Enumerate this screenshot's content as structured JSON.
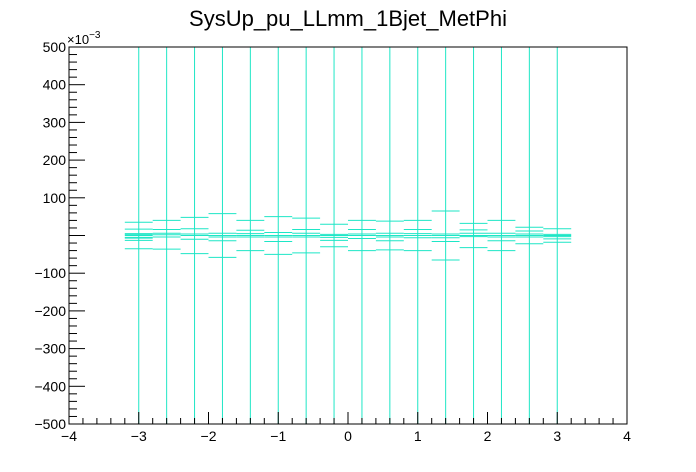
{
  "chart_data": {
    "type": "scatter",
    "title": "SysUp_pu_LLmm_1Bjet_MetPhi",
    "xlabel": "",
    "ylabel": "",
    "xlim": [
      -4,
      4
    ],
    "ylim": [
      -500,
      500
    ],
    "y_scale_label": "×10",
    "y_scale_exponent": "−3",
    "x_tick_labels": [
      "−4",
      "−3",
      "−2",
      "−1",
      "0",
      "1",
      "2",
      "3",
      "4"
    ],
    "x_tick_values": [
      -4,
      -3,
      -2,
      -1,
      0,
      1,
      2,
      3,
      4
    ],
    "y_tick_labels": [
      "−500",
      "−400",
      "−300",
      "−200",
      "−100",
      "100",
      "200",
      "300",
      "400",
      "500"
    ],
    "y_tick_values": [
      -500,
      -400,
      -300,
      -200,
      -100,
      100,
      200,
      300,
      400,
      500
    ],
    "grid": false,
    "series": [
      {
        "color": "#1ee6c6",
        "vertical_line_x": [
          -3.0,
          -2.6,
          -2.2,
          -1.8,
          -1.4,
          -1.0,
          -0.6,
          -0.2,
          0.2,
          0.6,
          1.0,
          1.4,
          1.8,
          2.2,
          2.6,
          3.0
        ],
        "bin_half_width": 0.2,
        "points": [
          {
            "x": -3.0,
            "y": 0,
            "err": 35
          },
          {
            "x": -3.0,
            "y": 5,
            "err": 12
          },
          {
            "x": -3.0,
            "y": -5,
            "err": 8
          },
          {
            "x": -2.6,
            "y": 2,
            "err": 38
          },
          {
            "x": -2.6,
            "y": 6,
            "err": 10
          },
          {
            "x": -2.2,
            "y": 0,
            "err": 48
          },
          {
            "x": -2.2,
            "y": 4,
            "err": 14
          },
          {
            "x": -1.8,
            "y": 0,
            "err": 58
          },
          {
            "x": -1.8,
            "y": -4,
            "err": 10
          },
          {
            "x": -1.4,
            "y": 0,
            "err": 40
          },
          {
            "x": -1.4,
            "y": 5,
            "err": 9
          },
          {
            "x": -1.0,
            "y": 0,
            "err": 50
          },
          {
            "x": -1.0,
            "y": -4,
            "err": 12
          },
          {
            "x": -0.6,
            "y": 0,
            "err": 46
          },
          {
            "x": -0.6,
            "y": 6,
            "err": 10
          },
          {
            "x": -0.2,
            "y": 0,
            "err": 30
          },
          {
            "x": -0.2,
            "y": -5,
            "err": 8
          },
          {
            "x": 0.2,
            "y": 0,
            "err": 40
          },
          {
            "x": 0.2,
            "y": 4,
            "err": 12
          },
          {
            "x": 0.6,
            "y": 0,
            "err": 38
          },
          {
            "x": 0.6,
            "y": -4,
            "err": 10
          },
          {
            "x": 1.0,
            "y": 0,
            "err": 40
          },
          {
            "x": 1.0,
            "y": 5,
            "err": 11
          },
          {
            "x": 1.4,
            "y": 0,
            "err": 65
          },
          {
            "x": 1.4,
            "y": -6,
            "err": 10
          },
          {
            "x": 1.8,
            "y": 0,
            "err": 32
          },
          {
            "x": 1.8,
            "y": 6,
            "err": 9
          },
          {
            "x": 2.2,
            "y": 0,
            "err": 40
          },
          {
            "x": 2.2,
            "y": -4,
            "err": 10
          },
          {
            "x": 2.6,
            "y": 0,
            "err": 22
          },
          {
            "x": 2.6,
            "y": 4,
            "err": 8
          },
          {
            "x": 3.0,
            "y": 0,
            "err": 18
          },
          {
            "x": 3.0,
            "y": -3,
            "err": 6
          }
        ]
      }
    ]
  }
}
